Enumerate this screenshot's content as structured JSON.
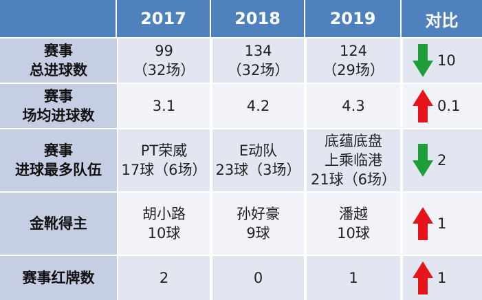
{
  "header": {
    "col1": "",
    "col2": "2017",
    "col3": "2018",
    "col4": "2019",
    "col5": "对比"
  },
  "rows": [
    {
      "label_lines": [
        "赛事",
        "总进球数"
      ],
      "v2017": [
        "99",
        "（32场）"
      ],
      "v2018": [
        "134",
        "（32场）"
      ],
      "v2019": [
        "124",
        "（29场）"
      ],
      "compare": {
        "direction": "down",
        "value": "10",
        "arrow_color": "#1e9e3a"
      }
    },
    {
      "label_lines": [
        "赛事",
        "场均进球数"
      ],
      "v2017": [
        "3.1"
      ],
      "v2018": [
        "4.2"
      ],
      "v2019": [
        "4.3"
      ],
      "compare": {
        "direction": "up",
        "value": "0.1",
        "arrow_color": "#e8141c"
      }
    },
    {
      "label_lines": [
        "赛事",
        "进球最多队伍"
      ],
      "v2017": [
        "PT荣威",
        "17球（6场）"
      ],
      "v2018": [
        "E动队",
        "23球（3场）"
      ],
      "v2019": [
        "底蕴底盘",
        "上乘临港",
        "21球（6场）"
      ],
      "compare": {
        "direction": "down",
        "value": "2",
        "arrow_color": "#1e9e3a"
      }
    },
    {
      "label_lines": [
        "金靴得主"
      ],
      "v2017": [
        "胡小路",
        "10球"
      ],
      "v2018": [
        "孙好豪",
        "9球"
      ],
      "v2019": [
        "潘越",
        "10球"
      ],
      "compare": {
        "direction": "up",
        "value": "1",
        "arrow_color": "#e8141c"
      }
    },
    {
      "label_lines": [
        "赛事红牌数"
      ],
      "v2017": [
        "2"
      ],
      "v2018": [
        "0"
      ],
      "v2019": [
        "1"
      ],
      "compare": {
        "direction": "up",
        "value": "1",
        "arrow_color": "#e8141c"
      }
    }
  ]
}
